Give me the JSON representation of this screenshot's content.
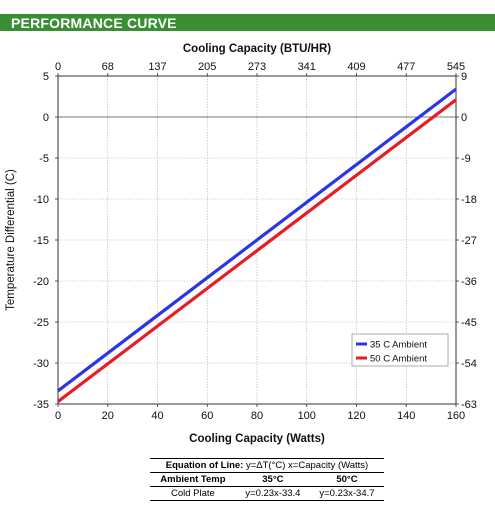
{
  "header": {
    "title": "PERFORMANCE CURVE"
  },
  "chart_data": {
    "type": "line",
    "title": "",
    "xlabel": "Cooling Capacity (Watts)",
    "ylabel": "Temperature Differential (C)",
    "x2label": "Cooling Capacity (BTU/HR)",
    "xlim": [
      0,
      160
    ],
    "ylim": [
      -35,
      5
    ],
    "x_ticks": [
      0,
      20,
      40,
      60,
      80,
      100,
      120,
      140,
      160
    ],
    "y_ticks": [
      5,
      0,
      -5,
      -10,
      -15,
      -20,
      -25,
      -30,
      -35
    ],
    "x2_ticks": [
      "0",
      "68",
      "137",
      "205",
      "273",
      "341",
      "409",
      "477",
      "545"
    ],
    "y2_ticks": [
      "9",
      "0",
      "-9",
      "-18",
      "-27",
      "-36",
      "-45",
      "-54",
      "-63"
    ],
    "grid": true,
    "legend_position": "bottom-right",
    "series": [
      {
        "name": "35 C Ambient",
        "color": "#2b35e6",
        "x": [
          0,
          160
        ],
        "y": [
          -33.4,
          3.4
        ]
      },
      {
        "name": "50 C Ambient",
        "color": "#e81c24",
        "x": [
          0,
          160
        ],
        "y": [
          -34.7,
          2.1
        ]
      }
    ]
  },
  "equation_table": {
    "eq_label": "Equation of Line:",
    "eq_text": "y=ΔT(°C)  x=Capacity (Watts)",
    "col_label": "Ambient Temp",
    "col1": "35°C",
    "col2": "50°C",
    "row_label": "Cold Plate",
    "row_val1": "y=0.23x-33.4",
    "row_val2": "y=0.23x-34.7"
  }
}
